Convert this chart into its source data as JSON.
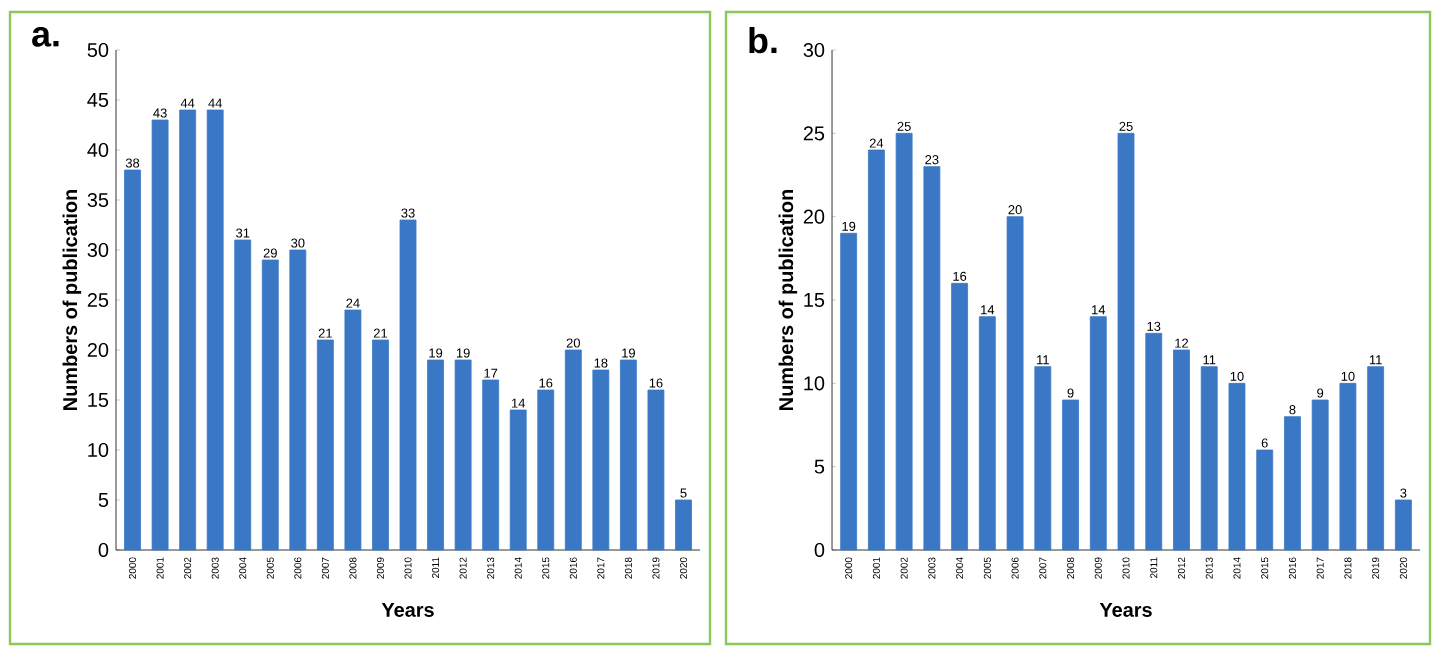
{
  "chart_data": [
    {
      "type": "bar",
      "annotations": [
        "a."
      ],
      "xlabel": "Years",
      "ylabel": "Numbers of publication",
      "categories": [
        "2000",
        "2001",
        "2002",
        "2003",
        "2004",
        "2005",
        "2006",
        "2007",
        "2008",
        "2009",
        "2010",
        "2011",
        "2012",
        "2013",
        "2014",
        "2015",
        "2016",
        "2017",
        "2018",
        "2019",
        "2020"
      ],
      "values": [
        38,
        43,
        44,
        44,
        31,
        29,
        30,
        21,
        24,
        21,
        33,
        19,
        19,
        17,
        14,
        16,
        20,
        18,
        19,
        16,
        5
      ],
      "color": "#3a78c5",
      "ylim": [
        0,
        50
      ],
      "yticks": [
        0,
        5,
        10,
        15,
        20,
        25,
        30,
        35,
        40,
        45,
        50
      ],
      "data_labels": true
    },
    {
      "type": "bar",
      "annotations": [
        "b."
      ],
      "xlabel": "Years",
      "ylabel": "Numbers of publication",
      "categories": [
        "2000",
        "2001",
        "2002",
        "2003",
        "2004",
        "2005",
        "2006",
        "2007",
        "2008",
        "2009",
        "2010",
        "2011",
        "2012",
        "2013",
        "2014",
        "2015",
        "2016",
        "2017",
        "2018",
        "2019",
        "2020"
      ],
      "values": [
        19,
        24,
        25,
        23,
        16,
        14,
        20,
        11,
        9,
        14,
        25,
        13,
        12,
        11,
        10,
        6,
        8,
        9,
        10,
        11,
        3
      ],
      "color": "#3a78c5",
      "ylim": [
        0,
        30
      ],
      "yticks": [
        0,
        5,
        10,
        15,
        20,
        25,
        30
      ],
      "data_labels": true
    }
  ]
}
